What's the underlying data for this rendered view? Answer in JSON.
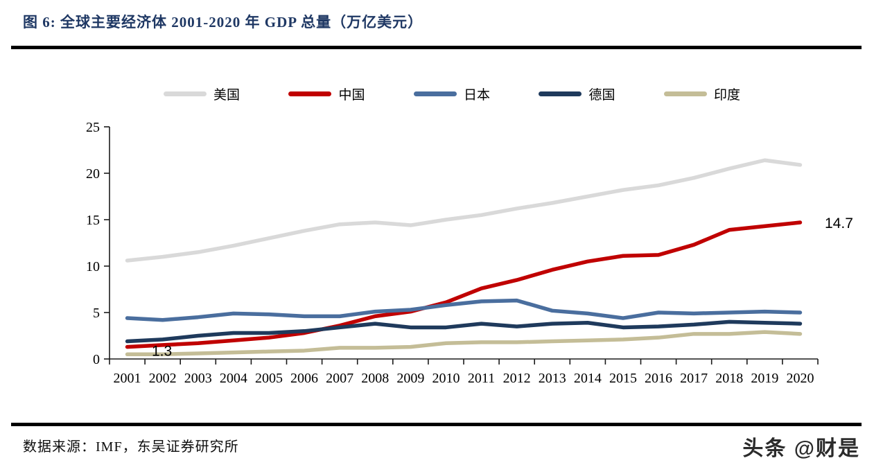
{
  "page": {
    "title": "图 6:  全球主要经济体 2001-2020 年 GDP 总量（万亿美元）",
    "source_note": "数据来源：IMF，东吴证券研究所",
    "watermark": "头条 @财是"
  },
  "colors": {
    "title_text": "#1f3864",
    "divider": "#000000",
    "axis": "#1a1a1a",
    "annotation": "#000000"
  },
  "chart_data": {
    "type": "line",
    "title": "全球主要经济体 2001-2020 年 GDP 总量（万亿美元）",
    "xlabel": "",
    "ylabel": "",
    "categories": [
      "2001",
      "2002",
      "2003",
      "2004",
      "2005",
      "2006",
      "2007",
      "2008",
      "2009",
      "2010",
      "2011",
      "2012",
      "2013",
      "2014",
      "2015",
      "2016",
      "2017",
      "2018",
      "2019",
      "2020"
    ],
    "series": [
      {
        "key": "us",
        "name": "美国",
        "color": "#d9d9d9",
        "values": [
          10.6,
          11.0,
          11.5,
          12.2,
          13.0,
          13.8,
          14.5,
          14.7,
          14.4,
          15.0,
          15.5,
          16.2,
          16.8,
          17.5,
          18.2,
          18.7,
          19.5,
          20.5,
          21.4,
          20.9
        ]
      },
      {
        "key": "china",
        "name": "中国",
        "color": "#c00000",
        "values": [
          1.3,
          1.5,
          1.7,
          2.0,
          2.3,
          2.8,
          3.6,
          4.6,
          5.1,
          6.1,
          7.6,
          8.5,
          9.6,
          10.5,
          11.1,
          11.2,
          12.3,
          13.9,
          14.3,
          14.7
        ]
      },
      {
        "key": "japan",
        "name": "日本",
        "color": "#4a6e9e",
        "values": [
          4.4,
          4.2,
          4.5,
          4.9,
          4.8,
          4.6,
          4.6,
          5.1,
          5.3,
          5.8,
          6.2,
          6.3,
          5.2,
          4.9,
          4.4,
          5.0,
          4.9,
          5.0,
          5.1,
          5.0
        ]
      },
      {
        "key": "germany",
        "name": "德国",
        "color": "#1f3a5c",
        "values": [
          1.9,
          2.1,
          2.5,
          2.8,
          2.8,
          3.0,
          3.4,
          3.8,
          3.4,
          3.4,
          3.8,
          3.5,
          3.8,
          3.9,
          3.4,
          3.5,
          3.7,
          4.0,
          3.9,
          3.8
        ]
      },
      {
        "key": "india",
        "name": "印度",
        "color": "#c4bd97",
        "values": [
          0.5,
          0.5,
          0.6,
          0.7,
          0.8,
          0.9,
          1.2,
          1.2,
          1.3,
          1.7,
          1.8,
          1.8,
          1.9,
          2.0,
          2.1,
          2.3,
          2.7,
          2.7,
          2.9,
          2.7
        ]
      }
    ],
    "ylim": [
      0,
      25
    ],
    "yticks": [
      0,
      5,
      10,
      15,
      20,
      25
    ],
    "grid": false,
    "legend_position": "top",
    "annotations": [
      {
        "text": "1.3",
        "series": "china",
        "index": 0,
        "placement": "below-right"
      },
      {
        "text": "14.7",
        "series": "china",
        "index": 19,
        "placement": "right-of-end"
      }
    ]
  }
}
